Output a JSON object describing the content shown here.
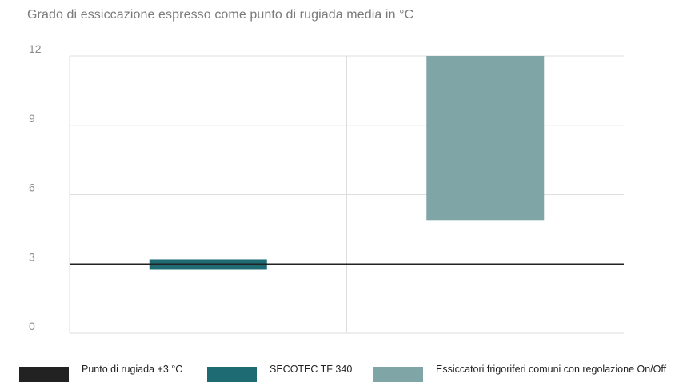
{
  "chart_data": {
    "type": "bar",
    "title": "Grado di essiccazione espresso come punto di rugiada media in °C",
    "xlabel": "",
    "ylabel": "",
    "ylim": [
      0,
      12
    ],
    "yticks": [
      "0",
      "3",
      "6",
      "9",
      "12"
    ],
    "grid": true,
    "legend_position": "bottom",
    "reference_line": {
      "name": "Punto di  rugiada +3 °C",
      "value": 3,
      "color": "#222222"
    },
    "series": [
      {
        "name": "SECOTEC TF 340",
        "category_index": 0,
        "low": 2.75,
        "high": 3.2,
        "color": "#1e6b73"
      },
      {
        "name": "Essiccatori frigoriferi comuni con regolazione On/Off",
        "category_index": 1,
        "low": 4.9,
        "high": 12,
        "color": "#7fa5a6"
      }
    ]
  },
  "legend": [
    {
      "label": "Punto di  rugiada +3 °C",
      "color": "#222222"
    },
    {
      "label": "SECOTEC TF 340",
      "color": "#1e6b73"
    },
    {
      "label": "Essiccatori frigoriferi comuni con regolazione On/Off",
      "color": "#7fa5a6"
    }
  ]
}
